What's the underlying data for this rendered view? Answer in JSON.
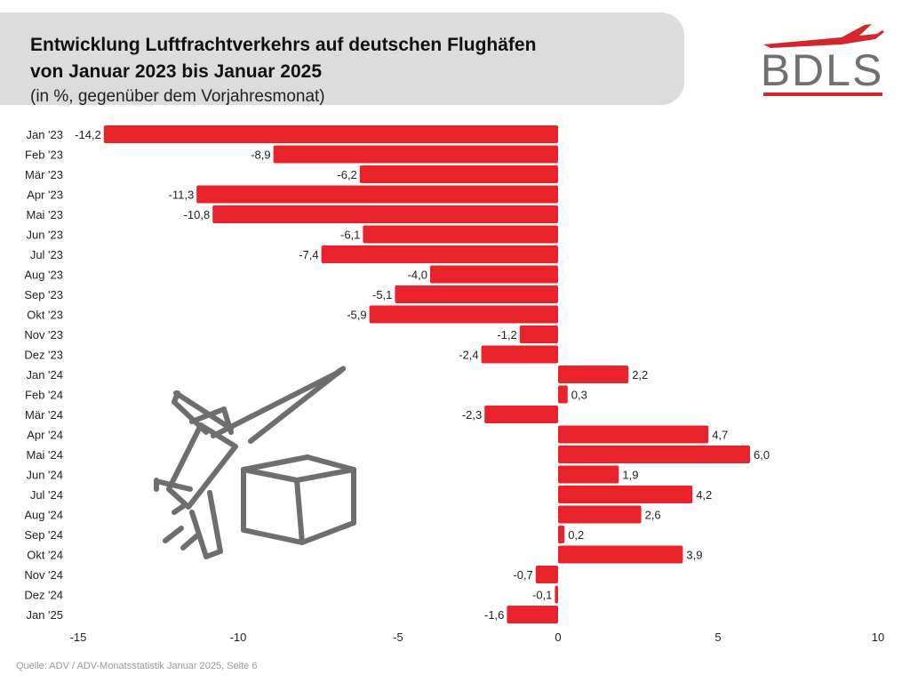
{
  "header": {
    "title_line1": "Entwicklung Luftfrachtverkehrs auf deutschen Flughäfen",
    "title_line2": "von Januar 2023 bis Januar 2025",
    "subtitle": "(in %, gegenüber dem Vorjahresmonat)"
  },
  "logo": {
    "text": "BDLS",
    "icon": "airplane-icon"
  },
  "colors": {
    "bar": "#e8232b",
    "header_bg": "#dcdcdc",
    "logo_red": "#d3272e",
    "logo_gray": "#707070"
  },
  "source": "Quelle: ADV / ADV-Monatsstatistik Januar 2025, Seite 6",
  "illustration": {
    "icon": "airplane-with-package-icon"
  },
  "chart_data": {
    "type": "bar",
    "orientation": "horizontal",
    "categories": [
      "Jan '23",
      "Feb '23",
      "Mär '23",
      "Apr '23",
      "Mai '23",
      "Jun '23",
      "Jul '23",
      "Aug '23",
      "Sep '23",
      "Okt '23",
      "Nov '23",
      "Dez '23",
      "Jan '24",
      "Feb '24",
      "Mär '24",
      "Apr '24",
      "Mai '24",
      "Jun '24",
      "Jul '24",
      "Aug '24",
      "Sep '24",
      "Okt '24",
      "Nov '24",
      "Dez '24",
      "Jan '25"
    ],
    "values": [
      -14.2,
      -8.9,
      -6.2,
      -11.3,
      -10.8,
      -6.1,
      -7.4,
      -4.0,
      -5.1,
      -5.9,
      -1.2,
      -2.4,
      2.2,
      0.3,
      -2.3,
      4.7,
      6.0,
      1.9,
      4.2,
      2.6,
      0.2,
      3.9,
      -0.7,
      -0.1,
      -1.6
    ],
    "value_labels": [
      "-14,2",
      "-8,9",
      "-6,2",
      "-11,3",
      "-10,8",
      "-6,1",
      "-7,4",
      "-4,0",
      "-5,1",
      "-5,9",
      "-1,2",
      "-2,4",
      "2,2",
      "0,3",
      "-2,3",
      "4,7",
      "6,0",
      "1,9",
      "4,2",
      "2,6",
      "0,2",
      "3,9",
      "-0,7",
      "-0,1",
      "-1,6"
    ],
    "xlim": [
      -15,
      10
    ],
    "x_ticks": [
      -15,
      -10,
      -5,
      0,
      5,
      10
    ],
    "grid": false,
    "legend": "none"
  }
}
